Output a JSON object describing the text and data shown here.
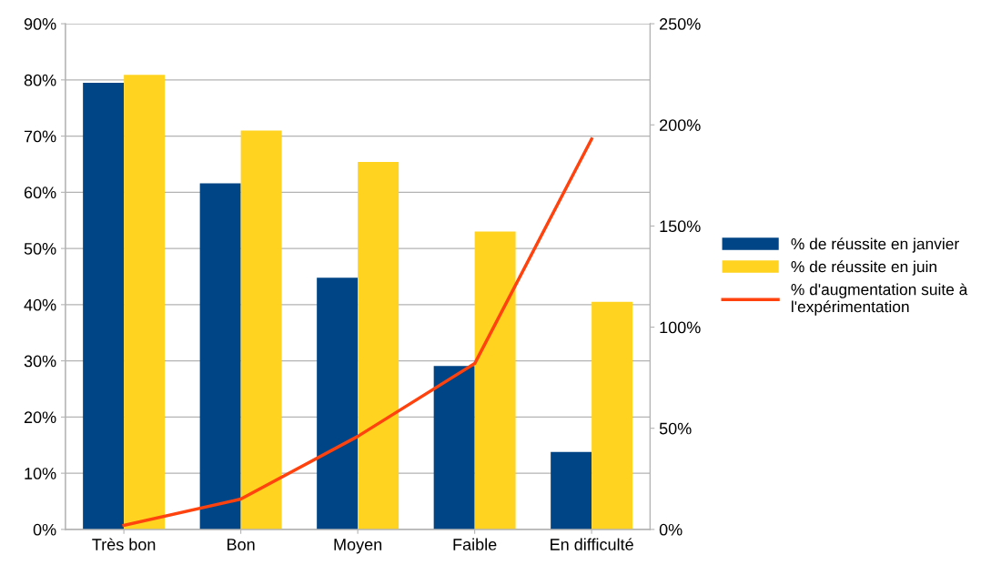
{
  "chart_data": {
    "type": "bar",
    "categories": [
      "Très bon",
      "Bon",
      "Moyen",
      "Faible",
      "En difficulté"
    ],
    "series": [
      {
        "name": "% de réussite en janvier",
        "color": "#004586",
        "values": [
          79.5,
          61.6,
          44.8,
          29.1,
          13.8
        ]
      },
      {
        "name": "% de réussite en juin",
        "color": "#ffd320",
        "values": [
          80.9,
          71.0,
          65.4,
          53.0,
          40.5
        ]
      },
      {
        "name": "% d'augmentation suite à\nl'expérimentation",
        "color": "#ff420e",
        "type": "line",
        "axis": "y2",
        "values": [
          2,
          15,
          46,
          82,
          193
        ]
      }
    ],
    "ylim": [
      0,
      90
    ],
    "yticks": [
      {
        "value": 0,
        "label": "0%"
      },
      {
        "value": 10,
        "label": "10%"
      },
      {
        "value": 20,
        "label": "20%"
      },
      {
        "value": 30,
        "label": "30%"
      },
      {
        "value": 40,
        "label": "40%"
      },
      {
        "value": 50,
        "label": "50%"
      },
      {
        "value": 60,
        "label": "60%"
      },
      {
        "value": 70,
        "label": "70%"
      },
      {
        "value": 80,
        "label": "80%"
      },
      {
        "value": 90,
        "label": "90%"
      }
    ],
    "y2lim": [
      0,
      250
    ],
    "y2ticks": [
      {
        "value": 0,
        "label": "0%"
      },
      {
        "value": 50,
        "label": "50%"
      },
      {
        "value": 100,
        "label": "100%"
      },
      {
        "value": 150,
        "label": "150%"
      },
      {
        "value": 200,
        "label": "200%"
      },
      {
        "value": 250,
        "label": "250%"
      }
    ],
    "grid": "y",
    "legend": "right"
  }
}
